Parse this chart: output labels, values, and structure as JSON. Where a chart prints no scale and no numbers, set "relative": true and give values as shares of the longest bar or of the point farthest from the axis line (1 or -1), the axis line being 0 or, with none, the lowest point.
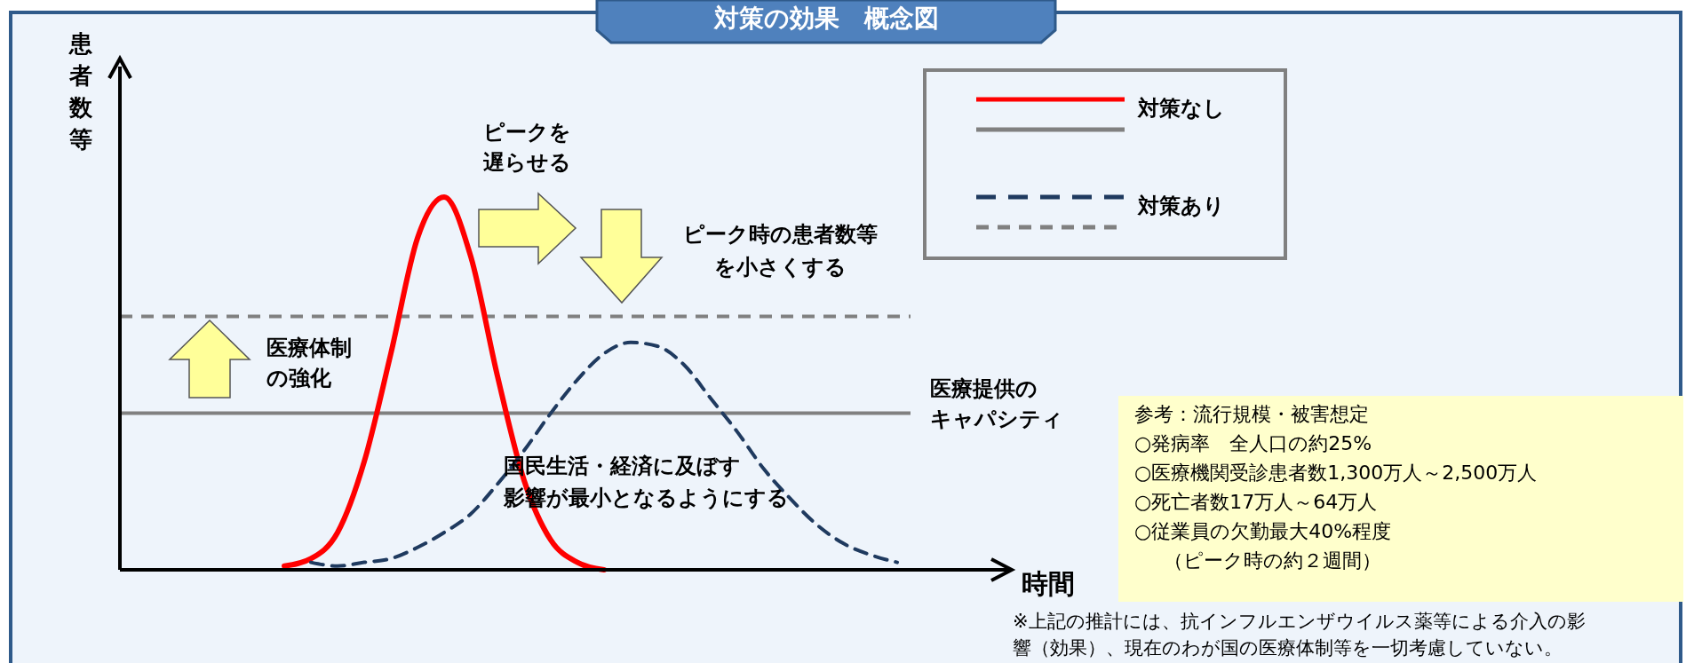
{
  "chart_data": {
    "type": "line",
    "title": "対策の効果　概念図",
    "xlabel": "時間",
    "ylabel": "患者数等",
    "relative": true,
    "legend": "top right",
    "grid": false,
    "categories": [
      null,
      null,
      null,
      null,
      null,
      null,
      null,
      null,
      null,
      null,
      null,
      null,
      null,
      null,
      null,
      null,
      null,
      null,
      null,
      null,
      null,
      null,
      null,
      null,
      null,
      null,
      null,
      null,
      null,
      null,
      null,
      null,
      null,
      null
    ],
    "series": [
      {
        "name": "対策なし",
        "color": "#ff0000",
        "line_style": "solid",
        "values": [
          null,
          null,
          null,
          null,
          null,
          null,
          0.01,
          0.03,
          0.1,
          0.29,
          0.58,
          0.89,
          1.0,
          0.84,
          0.52,
          0.24,
          0.08,
          0.02,
          0.0,
          null,
          null,
          null,
          null,
          null,
          null,
          null,
          null,
          null,
          null,
          null,
          null,
          null,
          null,
          null
        ]
      },
      {
        "name": "対策あり",
        "color": "#1f3a5f",
        "line_style": "dashed",
        "values": [
          null,
          null,
          null,
          null,
          null,
          null,
          null,
          0.02,
          0.01,
          0.02,
          0.03,
          0.06,
          0.1,
          0.15,
          0.23,
          0.32,
          0.42,
          0.51,
          0.58,
          0.61,
          0.6,
          0.55,
          0.46,
          0.37,
          0.27,
          0.19,
          0.12,
          0.07,
          0.04,
          0.02,
          null,
          null,
          null,
          null
        ]
      }
    ],
    "ref_lines": [
      {
        "axis": "y",
        "value": 0.42,
        "label": "医療提供のキャパシティ",
        "color": "#808080",
        "line_style": "solid"
      },
      {
        "axis": "y",
        "value": 0.68,
        "label": null,
        "color": "#808080",
        "line_style": "dashed"
      }
    ],
    "annotations": [
      "ピークを遅らせる",
      "ピーク時の患者数等を小さくする",
      "医療体制の強化",
      "国民生活・経済に及ぼす影響が最小となるようにする",
      "参考：流行規模・被害想定",
      "○発病率　全人口の約25%",
      "○医療機関受診患者数1,300万人～2,500万人",
      "○死亡者数17万人～64万人",
      "○従業員の欠勤最大40%程度",
      "（ピーク時の約２週間）",
      "※上記の推計には、抗インフルエンザウイルス薬等による介入の影響（効果）、現在のわが国の医療体制等を一切考慮していない。"
    ]
  }
}
